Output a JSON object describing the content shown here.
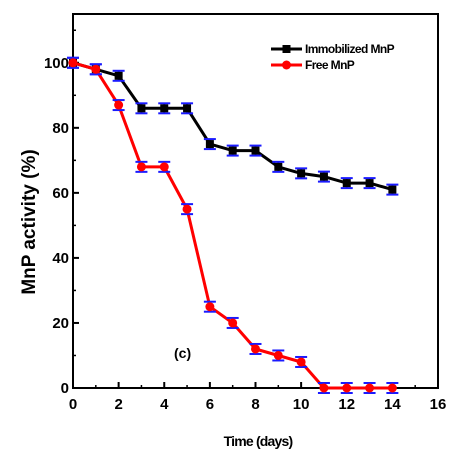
{
  "chart_data": {
    "type": "line",
    "title": "",
    "xlabel": "Time (days)",
    "ylabel": "MnP activity (%)",
    "xlim": [
      0,
      16
    ],
    "ylim": [
      0,
      115
    ],
    "xticks": [
      0,
      2,
      4,
      6,
      8,
      10,
      12,
      14,
      16
    ],
    "yticks": [
      0,
      20,
      40,
      60,
      80,
      100
    ],
    "grid": false,
    "legend_position": "top-right",
    "annotation": "(c)",
    "error_bar_color": "#1a1aff",
    "x": [
      0,
      1,
      2,
      3,
      4,
      5,
      6,
      7,
      8,
      9,
      10,
      11,
      12,
      13,
      14
    ],
    "series": [
      {
        "name": "Immobilized MnP",
        "color": "#000000",
        "marker": "square",
        "values": [
          100,
          98,
          96,
          86,
          86,
          86,
          75,
          73,
          73,
          68,
          66,
          65,
          63,
          63,
          61
        ]
      },
      {
        "name": "Free MnP",
        "color": "#ff0000",
        "marker": "circle",
        "values": [
          100,
          98,
          87,
          68,
          68,
          55,
          25,
          20,
          12,
          10,
          8,
          0,
          0,
          0,
          0
        ]
      }
    ]
  }
}
